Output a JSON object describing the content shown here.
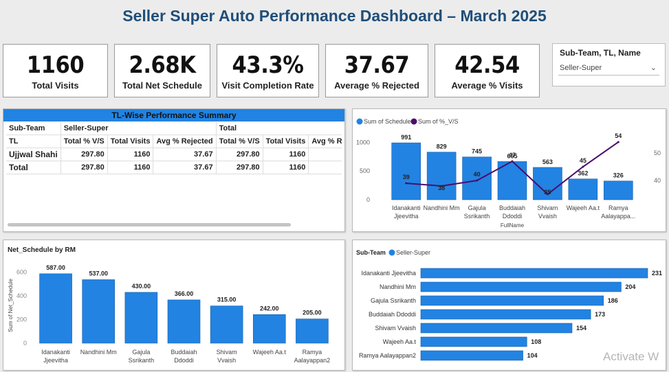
{
  "dashboard": {
    "title": "Seller Super Auto Performance Dashboard – March 2025"
  },
  "kpis": [
    {
      "value": "1160",
      "label": "Total Visits"
    },
    {
      "value": "2.68K",
      "label": "Total Net Schedule"
    },
    {
      "value": "43.3%",
      "label": "Visit Completion Rate"
    },
    {
      "value": "37.67",
      "label": "Average % Rejected"
    },
    {
      "value": "42.54",
      "label": "Average % Visits"
    }
  ],
  "slicer": {
    "header": "Sub-Team, TL, Name",
    "value": "Seller-Super"
  },
  "tl_table": {
    "title": "TL-Wise Performance Summary",
    "group_row": [
      "Sub-Team",
      "Seller-Super",
      "Total"
    ],
    "header": [
      "TL",
      "Total % V/S",
      "Total Visits",
      "Avg % Rejected",
      "Total % V/S",
      "Total Visits",
      "Avg % R"
    ],
    "rows": [
      [
        "Ujjwal Shahi",
        "297.80",
        "1160",
        "37.67",
        "297.80",
        "1160",
        ""
      ],
      [
        "Total",
        "297.80",
        "1160",
        "37.67",
        "297.80",
        "1160",
        ""
      ]
    ]
  },
  "colors": {
    "bar": "#2283e2",
    "line": "#4b0c6b",
    "title": "#1f4e79",
    "table_header": "#2283e2"
  },
  "combo": {
    "legend": [
      "Sum of Schedule",
      "Sum of %_V/S"
    ],
    "xlabel": "FullName",
    "y_ticks": [
      "0",
      "500",
      "1000"
    ],
    "y2_ticks": [
      "40",
      "50"
    ]
  },
  "netschedule": {
    "title": "Net_Schedule by RM",
    "ylabel": "Sum of Net_Schedule",
    "y_ticks": [
      "0",
      "200",
      "400",
      "600"
    ]
  },
  "hbar": {
    "legend_title": "Sub-Team",
    "legend_item": "Seller-Super"
  },
  "chart_data": [
    {
      "type": "bar",
      "title": "",
      "xlabel": "FullName",
      "categories": [
        "Idanakanti Jjeevitha",
        "Nandhini Mm",
        "Gajula Ssrikanth",
        "Buddaiah Ddoddi",
        "Shivam Vvaish",
        "Wajeeh Aa.t",
        "Ramya Aalayappa..."
      ],
      "series": [
        {
          "name": "Sum of Schedule",
          "values": [
            991,
            829,
            745,
            665,
            563,
            362,
            326
          ]
        },
        {
          "name": "Sum of %_V/S",
          "values": [
            39,
            38,
            40,
            47,
            35,
            45,
            54
          ],
          "axis": "secondary",
          "type": "line"
        }
      ],
      "ylim": [
        0,
        1100
      ],
      "y2lim": [
        33,
        56
      ]
    },
    {
      "type": "bar",
      "title": "Net_Schedule by RM",
      "ylabel": "Sum of Net_Schedule",
      "categories": [
        "Idanakanti Jjeevitha",
        "Nandhini Mm",
        "Gajula Ssrikanth",
        "Buddaiah Ddoddi",
        "Shivam Vvaish",
        "Wajeeh Aa.t",
        "Ramya Aalayappan2"
      ],
      "values": [
        587.0,
        537.0,
        430.0,
        366.0,
        315.0,
        242.0,
        205.0
      ],
      "ylim": [
        0,
        650
      ]
    },
    {
      "type": "bar",
      "orientation": "horizontal",
      "categories": [
        "Idanakanti Jjeevitha",
        "Nandhini Mm",
        "Gajula Ssrikanth",
        "Buddaiah Ddoddi",
        "Shivam Vvaish",
        "Wajeeh Aa.t",
        "Ramya Aalayappan2"
      ],
      "values": [
        231,
        204,
        186,
        173,
        154,
        108,
        104
      ],
      "xlim": [
        0,
        231
      ]
    }
  ],
  "watermark": "Activate W"
}
